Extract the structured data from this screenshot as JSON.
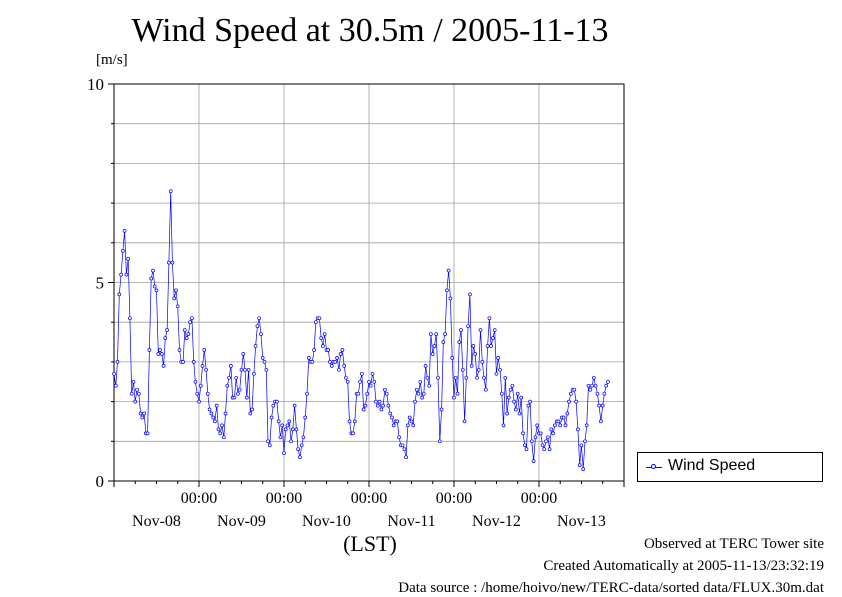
{
  "page": {
    "title": "Wind Speed at 30.5m / 2005-11-13",
    "unit_label": "[m/s]",
    "xlabel": "(LST)",
    "footer": {
      "line1": "Observed at TERC Tower site",
      "line2": "Created Automatically at 2005-11-13/23:32:19",
      "line3": "Data source : /home/hoivo/new/TERC-data/sorted  data/FLUX.30m.dat"
    },
    "legend_label": "Wind Speed"
  },
  "chart_data": {
    "type": "line",
    "title": "Wind Speed at 30.5m / 2005-11-13",
    "ylabel": "[m/s]",
    "xlabel": "(LST)",
    "xlim_days": [
      0,
      6
    ],
    "ylim": [
      0,
      10
    ],
    "y_ticks": [
      0,
      5,
      10
    ],
    "y_minor_ticks": [
      1,
      2,
      3,
      4,
      6,
      7,
      8,
      9
    ],
    "x_time_ticks": [
      "00:00",
      "00:00",
      "00:00",
      "00:00",
      "00:00"
    ],
    "x_date_labels": [
      "Nov-08",
      "Nov-09",
      "Nov-10",
      "Nov-11",
      "Nov-12",
      "Nov-13"
    ],
    "grid": true,
    "legend_position": "right",
    "series": [
      {
        "name": "Wind Speed",
        "color": "#0000ff",
        "x_start": 0,
        "step": 0.02083,
        "values": [
          2.7,
          2.4,
          3.0,
          4.7,
          5.2,
          5.8,
          6.3,
          5.2,
          5.6,
          4.1,
          2.2,
          2.5,
          2.0,
          2.3,
          2.2,
          1.7,
          1.6,
          1.7,
          1.2,
          1.2,
          3.3,
          5.1,
          5.3,
          4.9,
          4.8,
          3.2,
          3.3,
          3.2,
          2.9,
          3.6,
          3.8,
          5.5,
          7.3,
          5.5,
          4.6,
          4.8,
          4.4,
          3.3,
          3.0,
          3.0,
          3.8,
          3.6,
          3.7,
          4.0,
          4.1,
          3.0,
          2.5,
          2.2,
          2.0,
          2.4,
          2.9,
          3.3,
          2.8,
          2.2,
          1.8,
          1.7,
          1.6,
          1.5,
          1.9,
          1.3,
          1.2,
          1.4,
          1.1,
          1.7,
          2.4,
          2.6,
          2.9,
          2.1,
          2.1,
          2.6,
          2.2,
          2.3,
          2.8,
          3.2,
          2.8,
          2.1,
          2.8,
          1.7,
          1.8,
          2.7,
          3.4,
          3.9,
          4.1,
          3.7,
          3.1,
          3.0,
          2.8,
          1.0,
          0.9,
          1.6,
          1.9,
          2.0,
          2.0,
          1.5,
          1.1,
          1.4,
          0.7,
          1.3,
          1.4,
          1.5,
          1.0,
          1.3,
          1.9,
          1.3,
          0.8,
          0.6,
          0.9,
          1.1,
          1.6,
          2.2,
          3.1,
          3.0,
          3.0,
          3.3,
          4.0,
          4.1,
          4.1,
          3.6,
          3.4,
          3.7,
          3.3,
          3.3,
          3.0,
          2.9,
          3.0,
          3.0,
          3.1,
          2.8,
          3.2,
          3.3,
          2.9,
          2.6,
          2.5,
          1.5,
          1.2,
          1.2,
          1.5,
          2.2,
          2.2,
          2.5,
          2.7,
          1.8,
          1.9,
          2.2,
          2.5,
          2.4,
          2.7,
          2.5,
          2.0,
          1.9,
          2.0,
          1.8,
          1.9,
          2.3,
          2.2,
          1.9,
          1.7,
          1.6,
          1.4,
          1.5,
          1.5,
          1.1,
          0.9,
          0.9,
          0.8,
          0.6,
          1.4,
          1.6,
          1.5,
          1.4,
          2.0,
          2.3,
          2.2,
          2.5,
          2.1,
          2.2,
          2.9,
          2.6,
          2.4,
          3.7,
          3.2,
          3.4,
          3.7,
          2.6,
          1.0,
          1.8,
          3.5,
          3.7,
          4.8,
          5.3,
          4.6,
          3.1,
          2.1,
          2.6,
          2.2,
          3.5,
          3.8,
          2.8,
          1.5,
          2.6,
          3.9,
          4.7,
          2.9,
          3.4,
          3.2,
          2.6,
          2.8,
          3.8,
          3.0,
          2.6,
          2.3,
          3.4,
          4.1,
          3.4,
          3.6,
          3.8,
          2.7,
          3.1,
          2.8,
          2.2,
          1.4,
          2.6,
          1.7,
          2.1,
          2.3,
          2.4,
          2.0,
          1.8,
          2.2,
          1.7,
          2.1,
          1.2,
          0.9,
          0.8,
          1.9,
          2.0,
          1.0,
          0.5,
          1.1,
          1.4,
          1.2,
          1.2,
          0.9,
          0.8,
          1.0,
          1.1,
          0.8,
          1.3,
          1.2,
          1.4,
          1.5,
          1.5,
          1.4,
          1.6,
          1.6,
          1.4,
          1.7,
          2.0,
          2.2,
          2.3,
          2.3,
          2.0,
          1.3,
          0.4,
          0.9,
          0.3,
          1.0,
          1.4,
          2.4,
          2.3,
          2.4,
          2.6,
          2.4,
          2.2,
          1.9,
          1.5,
          1.9,
          2.2,
          2.4,
          2.5
        ]
      }
    ]
  }
}
